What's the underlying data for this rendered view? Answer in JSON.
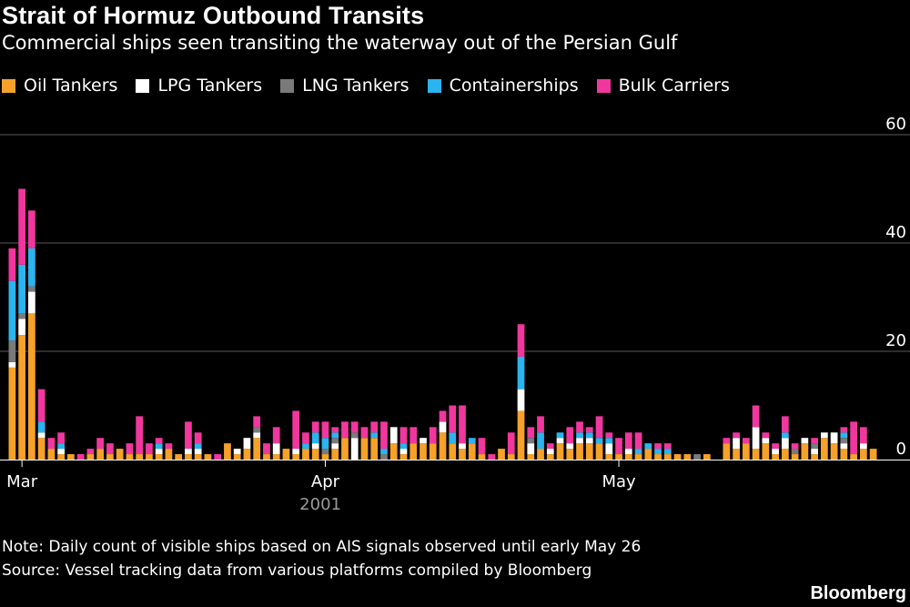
{
  "title": "Strait of Hormuz Outbound Transits",
  "subtitle": "Commercial ships seen transiting the waterway out of the Persian Gulf",
  "note": "Note: Daily count of visible ships based on AIS signals observed until early May 26",
  "source": "Source: Vessel tracking data from various platforms compiled by Bloomberg",
  "brand": "Bloomberg",
  "colors": {
    "background": "#000000",
    "oil": "#F5A12A",
    "lpg": "#FFFFFF",
    "lng": "#7A7A7A",
    "container": "#2BB4EE",
    "bulk": "#F0379E",
    "grid": "#5A5A5A",
    "axis_text": "#FFFFFF",
    "year_text": "#9A9A9A"
  },
  "chart_data": {
    "type": "bar",
    "stacked": true,
    "ylim": [
      0,
      60
    ],
    "yticks": [
      0,
      20,
      40,
      60
    ],
    "ytick_labels": [
      "0",
      "20",
      "40",
      "60"
    ],
    "grid": true,
    "legend_placement": "top-left",
    "x_start": "2001-02-28",
    "x_end": "2001-05-27",
    "xtick_labels": [
      {
        "date": "2001-03-01",
        "label": "Mar"
      },
      {
        "date": "2001-04-01",
        "label": "Apr"
      },
      {
        "date": "2001-05-01",
        "label": "May"
      }
    ],
    "xlabel": "2001",
    "ylabel": "",
    "dates": [
      "2001-02-28",
      "2001-03-01",
      "2001-03-02",
      "2001-03-03",
      "2001-03-04",
      "2001-03-05",
      "2001-03-06",
      "2001-03-07",
      "2001-03-08",
      "2001-03-09",
      "2001-03-10",
      "2001-03-11",
      "2001-03-12",
      "2001-03-13",
      "2001-03-14",
      "2001-03-15",
      "2001-03-16",
      "2001-03-17",
      "2001-03-18",
      "2001-03-19",
      "2001-03-20",
      "2001-03-21",
      "2001-03-22",
      "2001-03-23",
      "2001-03-24",
      "2001-03-25",
      "2001-03-26",
      "2001-03-27",
      "2001-03-28",
      "2001-03-29",
      "2001-03-30",
      "2001-03-31",
      "2001-04-01",
      "2001-04-02",
      "2001-04-03",
      "2001-04-04",
      "2001-04-05",
      "2001-04-06",
      "2001-04-07",
      "2001-04-08",
      "2001-04-09",
      "2001-04-10",
      "2001-04-11",
      "2001-04-12",
      "2001-04-13",
      "2001-04-14",
      "2001-04-15",
      "2001-04-16",
      "2001-04-17",
      "2001-04-18",
      "2001-04-19",
      "2001-04-20",
      "2001-04-21",
      "2001-04-22",
      "2001-04-23",
      "2001-04-24",
      "2001-04-25",
      "2001-04-26",
      "2001-04-27",
      "2001-04-28",
      "2001-04-29",
      "2001-04-30",
      "2001-05-01",
      "2001-05-02",
      "2001-05-03",
      "2001-05-04",
      "2001-05-05",
      "2001-05-06",
      "2001-05-07",
      "2001-05-08",
      "2001-05-09",
      "2001-05-10",
      "2001-05-11",
      "2001-05-12",
      "2001-05-13",
      "2001-05-14",
      "2001-05-15",
      "2001-05-16",
      "2001-05-17",
      "2001-05-18",
      "2001-05-19",
      "2001-05-20",
      "2001-05-21",
      "2001-05-22",
      "2001-05-23",
      "2001-05-24",
      "2001-05-25",
      "2001-05-26",
      "2001-05-27"
    ],
    "series": [
      {
        "name": "Oil Tankers",
        "color": "#F5A12A",
        "values": [
          17,
          23,
          27,
          4,
          2,
          1,
          1,
          0,
          1,
          2,
          1,
          2,
          1,
          1,
          1,
          1,
          2,
          1,
          1,
          1,
          1,
          0,
          3,
          1,
          2,
          4,
          1,
          1,
          2,
          1,
          2,
          2,
          1,
          2,
          4,
          0,
          4,
          4,
          0,
          3,
          1,
          3,
          3,
          3,
          5,
          3,
          2,
          3,
          1,
          0,
          2,
          1,
          9,
          1,
          2,
          1,
          3,
          2,
          3,
          3,
          3,
          1,
          1,
          1,
          1,
          2,
          1,
          1,
          1,
          1,
          0,
          1,
          0,
          3,
          2,
          3,
          2,
          3,
          1,
          2,
          1,
          3,
          1,
          4,
          3,
          2,
          1,
          2,
          2
        ]
      },
      {
        "name": "LPG Tankers",
        "color": "#FFFFFF",
        "values": [
          1,
          3,
          4,
          1,
          0,
          1,
          0,
          0,
          0,
          0,
          0,
          0,
          0,
          0,
          0,
          1,
          0,
          0,
          1,
          1,
          0,
          0,
          0,
          1,
          2,
          1,
          0,
          2,
          0,
          1,
          0,
          1,
          0,
          1,
          0,
          4,
          0,
          0,
          0,
          3,
          1,
          0,
          1,
          0,
          2,
          0,
          1,
          0,
          0,
          0,
          0,
          0,
          4,
          2,
          0,
          1,
          1,
          1,
          1,
          1,
          0,
          2,
          0,
          1,
          0,
          0,
          0,
          0,
          0,
          0,
          0,
          0,
          0,
          0,
          2,
          0,
          4,
          1,
          1,
          2,
          0,
          1,
          1,
          1,
          2,
          1,
          0,
          1,
          0
        ]
      },
      {
        "name": "LNG Tankers",
        "color": "#7A7A7A",
        "values": [
          4,
          1,
          1,
          0,
          0,
          0,
          0,
          0,
          0,
          0,
          0,
          0,
          0,
          0,
          0,
          0,
          0,
          0,
          0,
          0,
          0,
          0,
          0,
          0,
          0,
          1,
          0,
          0,
          0,
          0,
          0,
          0,
          1,
          1,
          0,
          1,
          0,
          0,
          1,
          0,
          0,
          0,
          0,
          0,
          0,
          0,
          0,
          0,
          0,
          0,
          0,
          0,
          0,
          1,
          0,
          0,
          0,
          0,
          0,
          0,
          0,
          0,
          0,
          0,
          0,
          0,
          0,
          0,
          0,
          0,
          1,
          0,
          0,
          0,
          0,
          0,
          0,
          0,
          0,
          0,
          1,
          0,
          1,
          0,
          0,
          1,
          0,
          0,
          0
        ]
      },
      {
        "name": "Containerships",
        "color": "#2BB4EE",
        "values": [
          11,
          9,
          7,
          2,
          0,
          1,
          0,
          0,
          0,
          0,
          0,
          0,
          0,
          0,
          0,
          1,
          0,
          0,
          0,
          1,
          0,
          0,
          0,
          0,
          0,
          0,
          0,
          0,
          0,
          0,
          1,
          2,
          2,
          1,
          0,
          0,
          0,
          1,
          1,
          0,
          1,
          0,
          0,
          0,
          0,
          2,
          0,
          1,
          0,
          0,
          0,
          0,
          6,
          0,
          3,
          0,
          1,
          0,
          1,
          1,
          1,
          1,
          0,
          0,
          1,
          1,
          1,
          1,
          0,
          0,
          0,
          0,
          0,
          0,
          0,
          0,
          0,
          0,
          0,
          1,
          0,
          0,
          0,
          0,
          0,
          1,
          0,
          0,
          0
        ]
      },
      {
        "name": "Bulk Carriers",
        "color": "#F0379E",
        "values": [
          6,
          14,
          7,
          6,
          2,
          2,
          0,
          1,
          1,
          2,
          2,
          0,
          2,
          7,
          2,
          1,
          1,
          0,
          5,
          2,
          0,
          1,
          0,
          0,
          0,
          2,
          2,
          3,
          0,
          7,
          2,
          2,
          3,
          1,
          3,
          2,
          2,
          2,
          5,
          0,
          3,
          3,
          0,
          3,
          2,
          5,
          7,
          0,
          3,
          1,
          0,
          4,
          6,
          2,
          3,
          1,
          0,
          3,
          2,
          1,
          4,
          1,
          3,
          3,
          3,
          0,
          1,
          1,
          0,
          0,
          0,
          0,
          0,
          1,
          1,
          1,
          4,
          1,
          1,
          3,
          1,
          0,
          1,
          0,
          0,
          1,
          6,
          3,
          0
        ]
      }
    ]
  }
}
